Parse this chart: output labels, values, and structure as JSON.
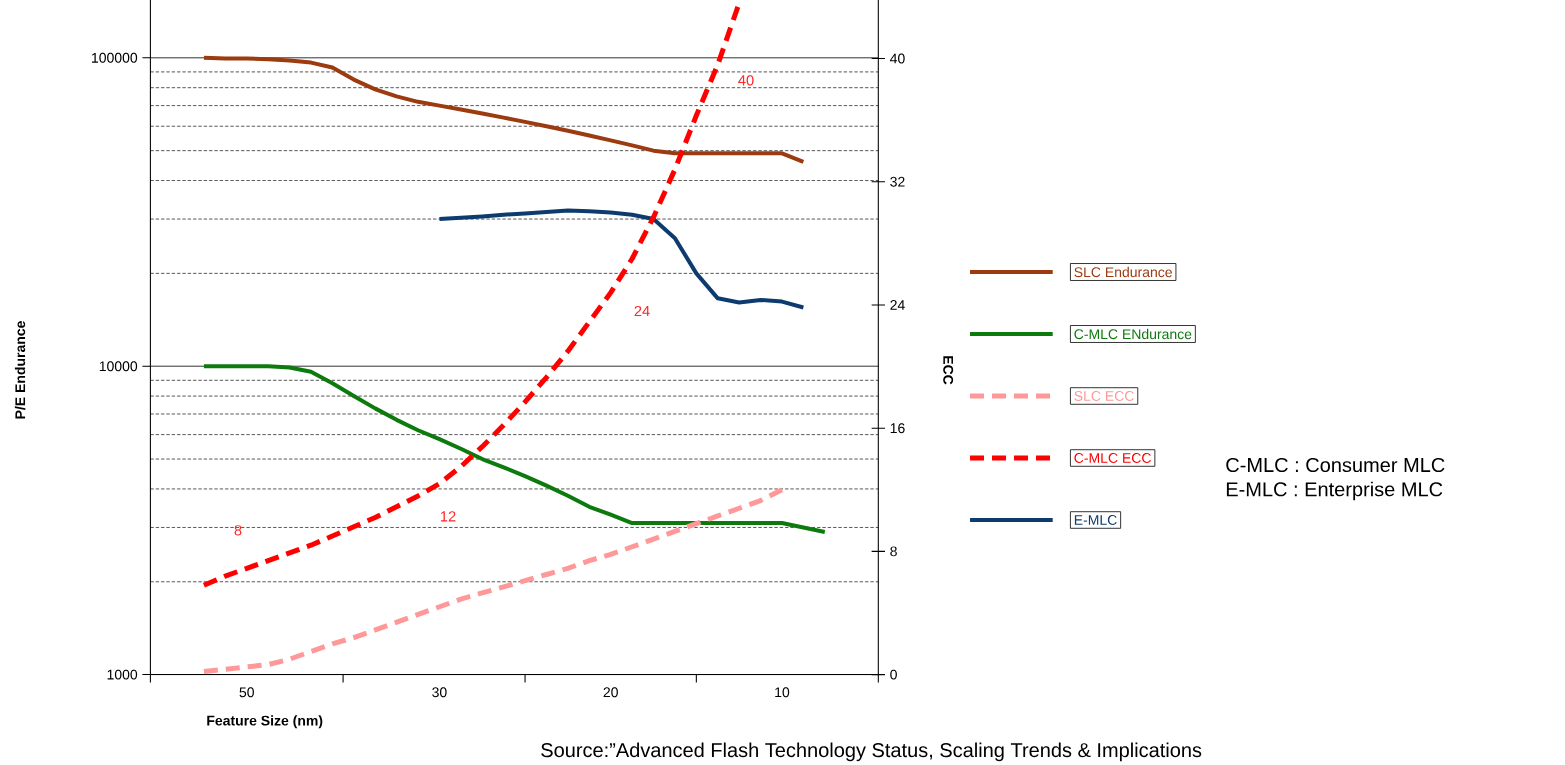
{
  "chart_data": {
    "type": "line",
    "xlabel": "Feature Size (nm)",
    "ylabel": "P/E Endurance",
    "y2label": "ECC",
    "categories": [
      null,
      null,
      null,
      null,
      "50",
      null,
      null,
      null,
      null,
      null,
      null,
      null,
      null,
      "30",
      null,
      null,
      null,
      null,
      null,
      null,
      null,
      "20",
      null,
      null,
      null,
      null,
      null,
      null,
      null,
      "10",
      null,
      null,
      null,
      null
    ],
    "log": "y",
    "ylim": [
      1000,
      154000
    ],
    "yticks": [
      1000,
      10000,
      100000
    ],
    "y2lim": [
      0,
      43.8
    ],
    "y2ticks": [
      0,
      8,
      16,
      24,
      32,
      40
    ],
    "grid": "y",
    "legend": "right",
    "marker": "none",
    "series": [
      {
        "name": "SLC Endurance",
        "color": "#9c3a10",
        "line_style": "solid",
        "values": [
          null,
          null,
          100000,
          99500,
          99500,
          99000,
          98000,
          96500,
          93000,
          85000,
          79000,
          75000,
          72000,
          70000,
          68000,
          66000,
          64000,
          62000,
          60000,
          58000,
          56000,
          54000,
          52000,
          50000,
          49000,
          49000,
          49000,
          49000,
          49000,
          49000,
          46000,
          null,
          null,
          null
        ]
      },
      {
        "name": "C-MLC ENdurance",
        "color": "#0d7a0d",
        "line_style": "solid",
        "values": [
          null,
          null,
          10000,
          10000,
          10000,
          10000,
          9900,
          9600,
          8800,
          8000,
          7300,
          6700,
          6200,
          5800,
          5400,
          5000,
          4700,
          4400,
          4100,
          3800,
          3500,
          3300,
          3100,
          3100,
          3100,
          3100,
          3100,
          3100,
          3100,
          3100,
          3000,
          2900,
          null,
          null
        ]
      },
      {
        "name": "SLC ECC",
        "color": "#ff9999",
        "line_style": "dashed",
        "axis": "y2",
        "values": [
          null,
          null,
          0.2,
          0.35,
          0.5,
          0.65,
          1.0,
          1.5,
          2.0,
          2.4,
          2.9,
          3.4,
          3.9,
          4.4,
          4.9,
          5.3,
          5.7,
          6.1,
          6.5,
          6.9,
          7.4,
          7.8,
          8.3,
          8.8,
          9.3,
          9.8,
          10.3,
          10.8,
          11.3,
          12.0,
          null,
          null,
          null,
          null
        ]
      },
      {
        "name": "C-MLC ECC",
        "color": "#ff0000",
        "line_style": "dashed",
        "axis": "y2",
        "values": [
          null,
          null,
          5.8,
          6.4,
          6.9,
          7.4,
          7.9,
          8.4,
          9.0,
          9.6,
          10.2,
          10.9,
          11.6,
          12.4,
          13.5,
          14.8,
          16.2,
          17.7,
          19.3,
          21.0,
          22.9,
          24.8,
          27.0,
          29.7,
          32.8,
          36.3,
          39.6,
          43.6,
          null,
          null,
          null,
          null,
          null,
          null
        ]
      },
      {
        "name": "E-MLC",
        "color": "#0d3b6e",
        "line_style": "solid",
        "values": [
          null,
          null,
          null,
          null,
          null,
          null,
          null,
          null,
          null,
          null,
          null,
          null,
          null,
          30000,
          30300,
          30600,
          31000,
          31300,
          31600,
          32000,
          31800,
          31500,
          31000,
          30000,
          26000,
          20000,
          16600,
          16100,
          16400,
          16200,
          15500,
          null,
          null,
          null
        ]
      }
    ],
    "annotations": [
      "8",
      "12",
      "24",
      "40",
      "C-MLC : Consumer MLC",
      "E-MLC : Enterprise MLC",
      "Source:”Advanced Flash Technology Status, Scaling Trends & Implications"
    ]
  }
}
